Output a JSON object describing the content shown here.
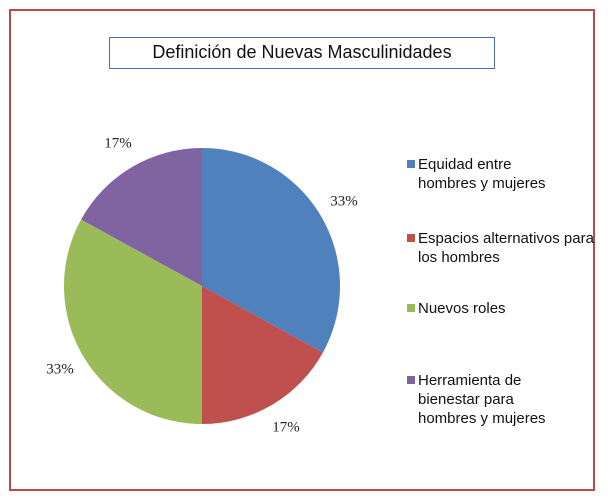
{
  "chart_data": {
    "type": "pie",
    "title": "Definición de Nuevas Masculinidades",
    "categories": [
      "Equidad entre hombres y mujeres",
      "Espacios alternativos para los hombres",
      "Nuevos roles",
      "Herramienta de bienestar para hombres y mujeres"
    ],
    "values": [
      33,
      17,
      33,
      17
    ],
    "value_labels": [
      "33%",
      "17%",
      "33%",
      "17%"
    ],
    "colors": [
      "#4f81bd",
      "#c0504d",
      "#9bbb59",
      "#8064a2"
    ],
    "legend": "right"
  }
}
